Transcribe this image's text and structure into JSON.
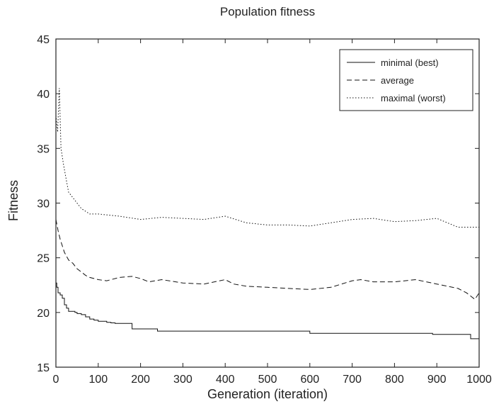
{
  "chart_data": {
    "type": "line",
    "title": "Population fitness",
    "xlabel": "Generation (iteration)",
    "ylabel": "Fitness",
    "xlim": [
      0,
      1000
    ],
    "ylim": [
      15,
      45
    ],
    "xticks": [
      0,
      100,
      200,
      300,
      400,
      500,
      600,
      700,
      800,
      900,
      1000
    ],
    "yticks": [
      15,
      20,
      25,
      30,
      35,
      40,
      45
    ],
    "grid": false,
    "legend_position": "top-right",
    "series": [
      {
        "name": "minimal (best)",
        "style": "solid",
        "color": "#111111",
        "x": [
          0,
          2,
          5,
          10,
          15,
          20,
          25,
          30,
          45,
          50,
          60,
          70,
          80,
          90,
          100,
          120,
          130,
          140,
          150,
          180,
          240,
          600,
          890,
          980,
          1000
        ],
        "y": [
          22.7,
          22.3,
          21.8,
          21.6,
          21.3,
          20.7,
          20.4,
          20.1,
          20.0,
          19.9,
          19.8,
          19.6,
          19.4,
          19.3,
          19.2,
          19.1,
          19.05,
          19.0,
          19.0,
          18.5,
          18.3,
          18.1,
          18.0,
          17.6,
          17.6
        ]
      },
      {
        "name": "average",
        "style": "dashed",
        "color": "#111111",
        "x": [
          0,
          5,
          10,
          20,
          30,
          40,
          50,
          60,
          70,
          80,
          100,
          120,
          150,
          180,
          200,
          220,
          250,
          300,
          350,
          400,
          420,
          450,
          500,
          550,
          600,
          650,
          700,
          720,
          750,
          800,
          850,
          900,
          950,
          970,
          990,
          1000
        ],
        "y": [
          28.5,
          27.5,
          26.7,
          25.5,
          24.8,
          24.5,
          24.0,
          23.7,
          23.4,
          23.2,
          23.0,
          22.9,
          23.2,
          23.3,
          23.1,
          22.8,
          23.0,
          22.7,
          22.6,
          23.0,
          22.6,
          22.4,
          22.3,
          22.2,
          22.1,
          22.3,
          22.9,
          23.0,
          22.8,
          22.8,
          23.0,
          22.6,
          22.2,
          21.8,
          21.2,
          21.8
        ]
      },
      {
        "name": "maximal (worst)",
        "style": "dotted",
        "color": "#111111",
        "x": [
          0,
          4,
          8,
          12,
          18,
          25,
          30,
          40,
          50,
          60,
          80,
          100,
          150,
          200,
          250,
          300,
          350,
          400,
          450,
          500,
          550,
          600,
          650,
          700,
          750,
          800,
          850,
          900,
          950,
          1000
        ],
        "y": [
          38.0,
          36.5,
          40.5,
          35.0,
          33.5,
          32.0,
          31.0,
          30.5,
          30.0,
          29.5,
          29.0,
          29.0,
          28.8,
          28.5,
          28.7,
          28.6,
          28.5,
          28.8,
          28.2,
          28.0,
          28.0,
          27.9,
          28.2,
          28.5,
          28.6,
          28.3,
          28.4,
          28.6,
          27.8,
          27.8
        ]
      }
    ]
  }
}
